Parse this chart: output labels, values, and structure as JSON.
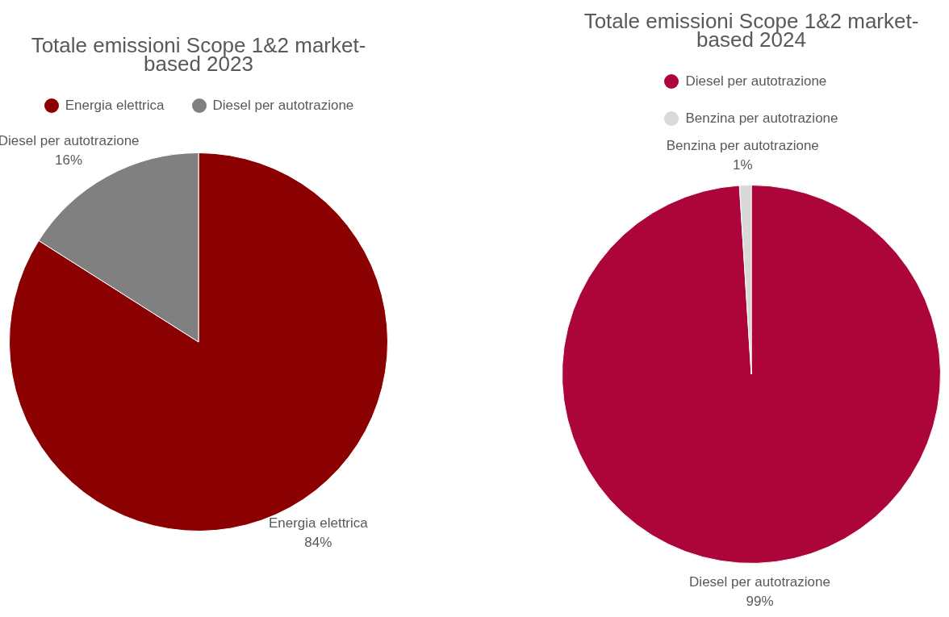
{
  "chart_data": [
    {
      "type": "pie",
      "title": "Totale emissioni Scope 1&2 market-based 2023",
      "categories": [
        "Energia elettrica",
        "Diesel per autotrazione"
      ],
      "values": [
        84,
        16
      ],
      "value_labels": [
        "84%",
        "16%"
      ],
      "colors": [
        "#8b0000",
        "#808080"
      ],
      "legend": "top"
    },
    {
      "type": "pie",
      "title": "Totale emissioni Scope 1&2 market-based 2024",
      "categories": [
        "Diesel per autotrazione",
        "Benzina per autotrazione"
      ],
      "values": [
        99,
        1
      ],
      "value_labels": [
        "99%",
        "1%"
      ],
      "colors": [
        "#ab0539",
        "#d9d9d9"
      ],
      "legend": "top"
    }
  ]
}
